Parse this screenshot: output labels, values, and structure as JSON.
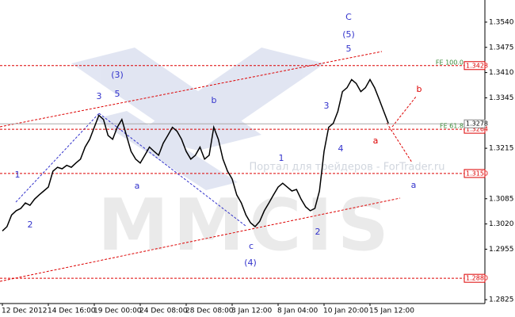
{
  "chart_data": {
    "type": "line",
    "watermark": "Портал для трейдеров - ForTrader.ru",
    "logo": "MMCIS",
    "values": [
      1.3002,
      1.3013,
      1.3043,
      1.3054,
      1.306,
      1.3074,
      1.3068,
      1.3084,
      1.3095,
      1.3105,
      1.3115,
      1.3156,
      1.3166,
      1.3162,
      1.3171,
      1.3166,
      1.3177,
      1.3187,
      1.3218,
      1.3238,
      1.3269,
      1.33,
      1.3289,
      1.3248,
      1.3238,
      1.3269,
      1.3289,
      1.3248,
      1.3207,
      1.3187,
      1.3177,
      1.3197,
      1.3218,
      1.3207,
      1.3197,
      1.3228,
      1.3248,
      1.3269,
      1.3259,
      1.3238,
      1.3207,
      1.3187,
      1.3197,
      1.3218,
      1.3187,
      1.3197,
      1.3269,
      1.3238,
      1.3187,
      1.3156,
      1.3136,
      1.3095,
      1.3074,
      1.3043,
      1.3023,
      1.3013,
      1.3027,
      1.3054,
      1.3074,
      1.3095,
      1.3115,
      1.3125,
      1.3115,
      1.3105,
      1.3109,
      1.3084,
      1.3064,
      1.3054,
      1.306,
      1.3105,
      1.3207,
      1.3269,
      1.3279,
      1.331,
      1.3361,
      1.3371,
      1.3392,
      1.3382,
      1.3361,
      1.3371,
      1.3392,
      1.3371,
      1.3341,
      1.331,
      1.3279
    ],
    "color": "#000000",
    "ylim": [
      1.2815,
      1.3597
    ],
    "yticks": [
      {
        "value": 1.354,
        "label": "1.3540"
      },
      1.3475,
      {
        "value": 1.341,
        "label": "1.3410"
      },
      1.3345,
      1.3215,
      1.3085,
      {
        "value": 1.302,
        "label": "1.3020"
      },
      1.2955,
      1.2825
    ],
    "xticks": [
      {
        "value": 0,
        "label": "12 Dec 2012"
      },
      {
        "value": 10,
        "label": "14 Dec 16:00"
      },
      {
        "value": 20,
        "label": "19 Dec 00:00"
      },
      {
        "value": 30,
        "label": "24 Dec 08:00"
      },
      {
        "value": 40,
        "label": "28 Dec 08:00"
      },
      {
        "value": 50,
        "label": "3 Jan 12:00"
      },
      {
        "value": 60,
        "label": "8 Jan 04:00"
      },
      {
        "value": 70,
        "label": "10 Jan 20:00"
      },
      {
        "value": 80,
        "label": "15 Jan 12:00"
      }
    ],
    "fib_levels": [
      {
        "name": "FE 100.0",
        "value": 1.3428
      },
      {
        "name": "FE 61.8",
        "value": 1.3264
      }
    ],
    "levels": [
      {
        "value": 1.315,
        "label": "1.3150"
      },
      {
        "value": 1.288,
        "label": "1.2880"
      }
    ],
    "last_price": 1.3278,
    "annotations": [
      "C",
      "(5)",
      "5",
      "(3)",
      "3",
      "5",
      "b",
      "1",
      "3",
      "4",
      "a",
      "2",
      "1",
      "2",
      "c",
      "(4)",
      "a",
      "b",
      "a"
    ]
  }
}
